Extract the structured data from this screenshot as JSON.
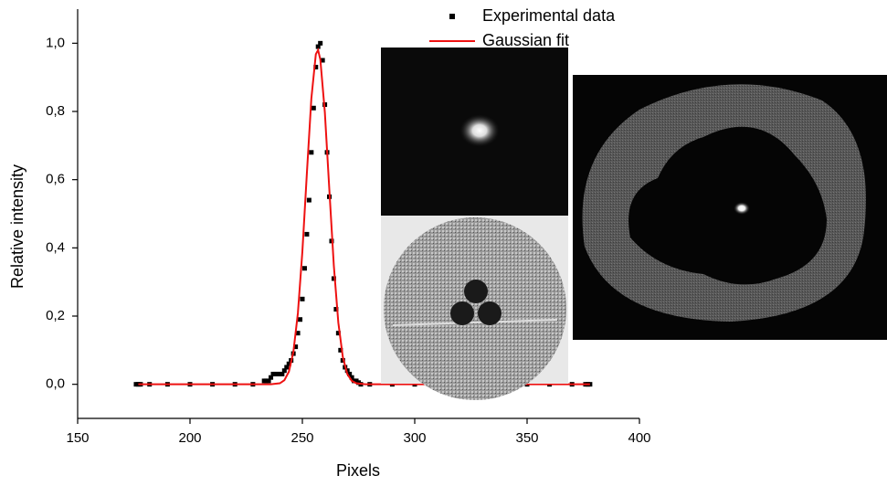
{
  "chart_data": {
    "type": "scatter",
    "xlabel": "Pixels",
    "ylabel": "Relative intensity",
    "xlim": [
      150,
      400
    ],
    "xticks": [
      150,
      200,
      250,
      300,
      350,
      400
    ],
    "ylim": [
      -0.1,
      1.1
    ],
    "yticks": [
      {
        "value": 0,
        "label": "0,0"
      },
      {
        "value": 0.2,
        "label": "0,2"
      },
      {
        "value": 0.4,
        "label": "0,4"
      },
      {
        "value": 0.6,
        "label": "0,6"
      },
      {
        "value": 0.8,
        "label": "0,8"
      },
      {
        "value": 1,
        "label": "1,0"
      }
    ],
    "legend": "top-right",
    "series": [
      {
        "name": "Experimental data",
        "type": "scatter",
        "color": "#000000",
        "x": [
          176,
          177,
          178,
          182,
          190,
          200,
          210,
          220,
          228,
          233,
          234,
          235,
          236,
          237,
          238,
          239,
          240,
          241,
          242,
          243,
          244,
          245,
          246,
          247,
          248,
          249,
          250,
          251,
          252,
          253,
          254,
          255,
          256,
          257,
          258,
          259,
          260,
          261,
          262,
          263,
          264,
          265,
          266,
          267,
          268,
          269,
          270,
          271,
          272,
          273,
          274,
          275,
          276,
          280,
          290,
          300,
          310,
          320,
          330,
          340,
          350,
          360,
          370,
          376,
          377,
          378
        ],
        "values": [
          0,
          0,
          0,
          0,
          0,
          0,
          0,
          0,
          0,
          0.01,
          0.01,
          0.01,
          0.02,
          0.03,
          0.03,
          0.03,
          0.03,
          0.03,
          0.04,
          0.05,
          0.06,
          0.07,
          0.09,
          0.11,
          0.15,
          0.19,
          0.25,
          0.34,
          0.44,
          0.54,
          0.68,
          0.81,
          0.93,
          0.99,
          1.0,
          0.95,
          0.82,
          0.68,
          0.55,
          0.42,
          0.31,
          0.22,
          0.15,
          0.1,
          0.07,
          0.05,
          0.04,
          0.03,
          0.02,
          0.01,
          0.01,
          0.005,
          0,
          0,
          0,
          0,
          0,
          0,
          0,
          0,
          0,
          0,
          0,
          0,
          0,
          0
        ]
      },
      {
        "name": "Gaussian fit",
        "type": "line",
        "color": "#ee1111",
        "x": [
          177,
          230,
          236,
          240,
          242,
          244,
          246,
          248,
          250,
          252,
          254,
          256,
          257,
          258,
          260,
          262,
          264,
          266,
          268,
          270,
          272,
          274,
          278,
          378
        ],
        "values": [
          0,
          0,
          0,
          0.003,
          0.012,
          0.037,
          0.095,
          0.208,
          0.389,
          0.618,
          0.838,
          0.968,
          0.98,
          0.952,
          0.798,
          0.571,
          0.348,
          0.181,
          0.08,
          0.03,
          0.01,
          0.003,
          0,
          0
        ]
      }
    ]
  }
}
